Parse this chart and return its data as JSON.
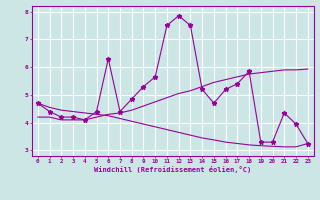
{
  "xlabel": "Windchill (Refroidissement éolien,°C)",
  "x_values": [
    0,
    1,
    2,
    3,
    4,
    5,
    6,
    7,
    8,
    9,
    10,
    11,
    12,
    13,
    14,
    15,
    16,
    17,
    18,
    19,
    20,
    21,
    22,
    23
  ],
  "line1_y": [
    4.7,
    4.4,
    4.2,
    4.2,
    4.1,
    4.4,
    6.3,
    4.4,
    4.85,
    5.3,
    5.65,
    7.5,
    7.85,
    7.5,
    5.2,
    4.7,
    5.2,
    5.4,
    5.85,
    3.3,
    3.3,
    4.35,
    3.95,
    3.25
  ],
  "line2_y": [
    4.2,
    4.2,
    4.1,
    4.1,
    4.1,
    4.2,
    4.3,
    4.35,
    4.45,
    4.6,
    4.75,
    4.9,
    5.05,
    5.15,
    5.3,
    5.45,
    5.55,
    5.65,
    5.75,
    5.8,
    5.85,
    5.9,
    5.9,
    5.93
  ],
  "line3_y": [
    4.7,
    4.55,
    4.45,
    4.4,
    4.35,
    4.3,
    4.25,
    4.15,
    4.05,
    3.95,
    3.85,
    3.75,
    3.65,
    3.55,
    3.45,
    3.38,
    3.3,
    3.25,
    3.2,
    3.17,
    3.15,
    3.13,
    3.13,
    3.25
  ],
  "color": "#990099",
  "bg_color": "#cce6e6",
  "grid_color": "#ffffff",
  "ylim": [
    2.8,
    8.2
  ],
  "yticks": [
    3,
    4,
    5,
    6,
    7,
    8
  ],
  "xlim": [
    -0.5,
    23.5
  ]
}
